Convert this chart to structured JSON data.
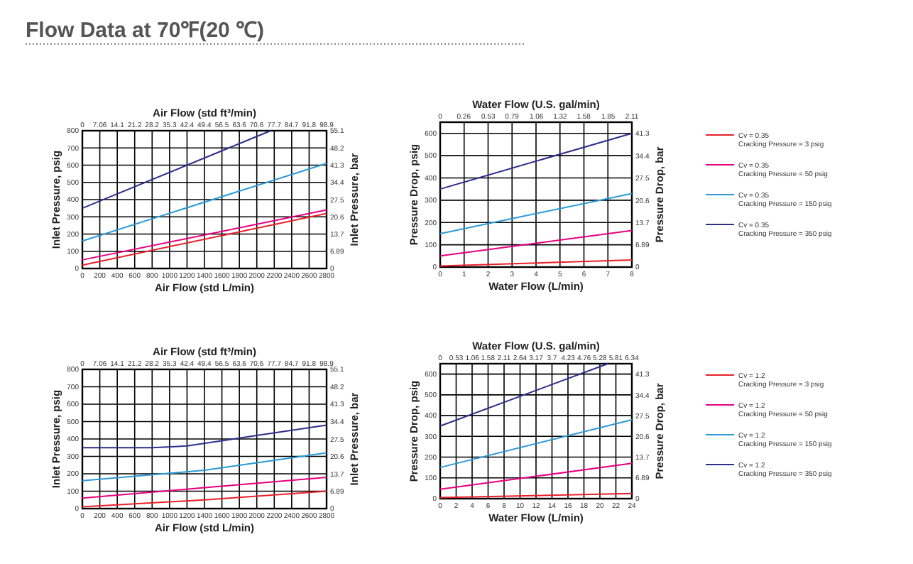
{
  "chart_data": [
    {
      "type": "line",
      "title": "Flow Data at 70℉(20 ℃)",
      "x2label": "Air Flow (std ft³/min)",
      "xlabel": "Air Flow (std L/min)",
      "ylabel": "Inlet Pressure, psig",
      "y2label": "Inlet Pressure, bar",
      "grid": true,
      "legend": false,
      "xlim": [
        0,
        2800
      ],
      "xticks": [
        0,
        200,
        400,
        600,
        800,
        1000,
        1200,
        1400,
        1600,
        1800,
        2000,
        2200,
        2400,
        2600,
        2800
      ],
      "x2lim": [
        0,
        98.9
      ],
      "x2ticks": [
        0,
        7.06,
        14.1,
        21.2,
        28.2,
        35.3,
        42.4,
        49.4,
        56.5,
        63.6,
        70.6,
        77.7,
        84.7,
        91.8,
        98.9
      ],
      "ylim": [
        0,
        800
      ],
      "yticks": [
        0,
        100,
        200,
        300,
        400,
        500,
        600,
        700,
        800
      ],
      "y2lim": [
        0,
        55.1
      ],
      "y2ticks": [
        0,
        6.89,
        13.7,
        20.6,
        27.5,
        34.4,
        41.3,
        48.2,
        55.1
      ],
      "series": [
        {
          "color": "#e8202a",
          "x": [
            0,
            2800
          ],
          "values": [
            20,
            320
          ]
        },
        {
          "color": "#e6007e",
          "x": [
            0,
            2800
          ],
          "values": [
            50,
            340
          ]
        },
        {
          "color": "#2a9ad8",
          "x": [
            0,
            2800
          ],
          "values": [
            160,
            610
          ]
        },
        {
          "color": "#2e2f8a",
          "x": [
            0,
            2160
          ],
          "values": [
            350,
            800
          ]
        }
      ]
    },
    {
      "type": "line",
      "x2label": "Water Flow (U.S. gal/min)",
      "xlabel": "Water Flow (L/min)",
      "ylabel": "Pressure Drop, psig",
      "y2label": "Pressure Drop, bar",
      "grid": true,
      "legend": "right",
      "xlim": [
        0,
        8
      ],
      "xticks": [
        0,
        1,
        2,
        3,
        4,
        5,
        6,
        7,
        8
      ],
      "x2lim": [
        0,
        2.11
      ],
      "x2ticks": [
        0,
        0.26,
        0.53,
        0.79,
        1.06,
        1.32,
        1.58,
        1.85,
        2.11
      ],
      "ylim": [
        0,
        650
      ],
      "yticks": [
        0,
        100,
        200,
        300,
        400,
        500,
        600
      ],
      "y2lim": [
        0,
        44.8
      ],
      "y2ticks": [
        0,
        6.89,
        13.7,
        20.6,
        27.5,
        34.4,
        41.3
      ],
      "series": [
        {
          "name": "Cv = 0.35\nCracking Pressure = 3 psig",
          "color": "#e8202a",
          "x": [
            0,
            8
          ],
          "values": [
            5,
            32
          ]
        },
        {
          "name": "Cv = 0.35\nCracking Pressure = 50 psig",
          "color": "#e6007e",
          "x": [
            0,
            8
          ],
          "values": [
            50,
            164
          ]
        },
        {
          "name": "Cv = 0.35\nCracking Pressure = 150 psig",
          "color": "#2a9ad8",
          "x": [
            0,
            8
          ],
          "values": [
            150,
            330
          ]
        },
        {
          "name": "Cv = 0.35\nCracking Pressure = 350 psig",
          "color": "#2e2f8a",
          "x": [
            0,
            8
          ],
          "values": [
            350,
            600
          ]
        }
      ]
    },
    {
      "type": "line",
      "x2label": "Air Flow (std ft³/min)",
      "xlabel": "Air Flow (std L/min)",
      "ylabel": "Inlet Pressure, psig",
      "y2label": "Inlet Pressure, bar",
      "grid": true,
      "legend": false,
      "xlim": [
        0,
        2800
      ],
      "xticks": [
        0,
        200,
        400,
        600,
        800,
        1000,
        1200,
        1400,
        1600,
        1800,
        2000,
        2200,
        2400,
        2600,
        2800
      ],
      "x2lim": [
        0,
        98.9
      ],
      "x2ticks": [
        0,
        7.06,
        14.1,
        21.2,
        28.2,
        35.3,
        42.4,
        49.4,
        56.5,
        63.6,
        70.6,
        77.7,
        84.7,
        91.8,
        98.9
      ],
      "ylim": [
        0,
        800
      ],
      "yticks": [
        0,
        100,
        200,
        300,
        400,
        500,
        600,
        700,
        800
      ],
      "y2lim": [
        0,
        55.1
      ],
      "y2ticks": [
        0,
        6.89,
        13.7,
        20.6,
        27.5,
        34.4,
        41.3,
        48.2,
        55.1
      ],
      "series": [
        {
          "color": "#e8202a",
          "x": [
            0,
            1400,
            2800
          ],
          "values": [
            10,
            50,
            100
          ]
        },
        {
          "color": "#e6007e",
          "x": [
            0,
            1400,
            2800
          ],
          "values": [
            60,
            120,
            180
          ]
        },
        {
          "color": "#2a9ad8",
          "x": [
            0,
            1400,
            2800
          ],
          "values": [
            160,
            220,
            320
          ]
        },
        {
          "color": "#2e2f8a",
          "x": [
            0,
            800,
            1200,
            1600,
            2000,
            2400,
            2800
          ],
          "values": [
            350,
            350,
            360,
            390,
            420,
            450,
            480
          ]
        }
      ]
    },
    {
      "type": "line",
      "x2label": "Water Flow (U.S. gal/min)",
      "xlabel": "Water Flow (L/min)",
      "ylabel": "Pressure Drop, psig",
      "y2label": "Pressure Drop, bar",
      "grid": true,
      "legend": "right",
      "xlim": [
        0,
        24
      ],
      "xticks": [
        0,
        2,
        4,
        6,
        8,
        10,
        12,
        14,
        16,
        18,
        20,
        22,
        24
      ],
      "x2lim": [
        0,
        6.34
      ],
      "x2ticks": [
        0,
        0.53,
        1.06,
        1.58,
        2.11,
        2.64,
        3.17,
        3.7,
        4.23,
        4.76,
        5.28,
        5.81,
        6.34
      ],
      "ylim": [
        0,
        650
      ],
      "yticks": [
        0,
        100,
        200,
        300,
        400,
        500,
        600
      ],
      "y2lim": [
        0,
        44.8
      ],
      "y2ticks": [
        0,
        6.89,
        13.7,
        20.6,
        27.5,
        34.4,
        41.3
      ],
      "series": [
        {
          "name": "Cv = 1.2\nCracking Pressure = 3 psig",
          "color": "#e8202a",
          "x": [
            0,
            24
          ],
          "values": [
            5,
            25
          ]
        },
        {
          "name": "Cv = 1.2\nCracking Pressure = 50 psig",
          "color": "#e6007e",
          "x": [
            0,
            24
          ],
          "values": [
            45,
            170
          ]
        },
        {
          "name": "Cv = 1.2\nCracking Pressure = 150 psig",
          "color": "#2a9ad8",
          "x": [
            0,
            24
          ],
          "values": [
            150,
            380
          ]
        },
        {
          "name": "Cv = 1.2\nCracking Pressure = 350 psig",
          "color": "#2e2f8a",
          "x": [
            0,
            21
          ],
          "values": [
            350,
            650
          ]
        }
      ]
    }
  ]
}
